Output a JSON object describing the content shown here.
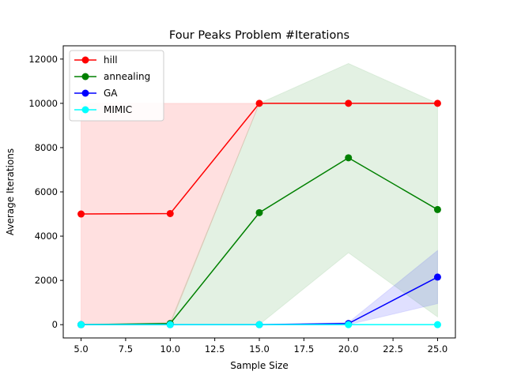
{
  "chart_data": {
    "type": "line",
    "title": "Four Peaks Problem #Iterations",
    "xlabel": "Sample Size",
    "ylabel": "Average Iterations",
    "x": [
      5,
      10,
      15,
      20,
      25
    ],
    "xlim": [
      4,
      26
    ],
    "ylim": [
      -600,
      12600
    ],
    "xticks": [
      5.0,
      7.5,
      10.0,
      12.5,
      15.0,
      17.5,
      20.0,
      22.5,
      25.0
    ],
    "xtick_labels": [
      "5.0",
      "7.5",
      "10.0",
      "12.5",
      "15.0",
      "17.5",
      "20.0",
      "22.5",
      "25.0"
    ],
    "yticks": [
      0,
      2000,
      4000,
      6000,
      8000,
      10000,
      12000
    ],
    "ytick_labels": [
      "0",
      "2000",
      "4000",
      "6000",
      "8000",
      "10000",
      "12000"
    ],
    "grid": false,
    "legend_position": "top-left",
    "series": [
      {
        "name": "hill",
        "color": "#ff0000",
        "band_color": "#ff0000",
        "band_opacity": 0.12,
        "values": [
          5000,
          5020,
          10000,
          10000,
          10000
        ],
        "lower": [
          0,
          0,
          10000,
          10000,
          10000
        ],
        "upper": [
          10000,
          10000,
          10000,
          10000,
          10000
        ]
      },
      {
        "name": "annealing",
        "color": "#008000",
        "band_color": "#008000",
        "band_opacity": 0.11,
        "values": [
          0,
          50,
          5060,
          7540,
          5200
        ],
        "lower": [
          0,
          0,
          0,
          3250,
          350
        ],
        "upper": [
          0,
          100,
          10000,
          11800,
          10000
        ]
      },
      {
        "name": "GA",
        "color": "#0000ff",
        "band_color": "#0000ff",
        "band_opacity": 0.12,
        "values": [
          0,
          0,
          0,
          50,
          2150
        ],
        "lower": [
          0,
          0,
          0,
          0,
          950
        ],
        "upper": [
          0,
          0,
          0,
          100,
          3350
        ]
      },
      {
        "name": "MIMIC",
        "color": "#00ffff",
        "band_color": "#00ffff",
        "band_opacity": 0.12,
        "values": [
          0,
          0,
          0,
          0,
          0
        ],
        "lower": [
          0,
          0,
          0,
          0,
          0
        ],
        "upper": [
          0,
          0,
          0,
          0,
          0
        ]
      }
    ]
  }
}
